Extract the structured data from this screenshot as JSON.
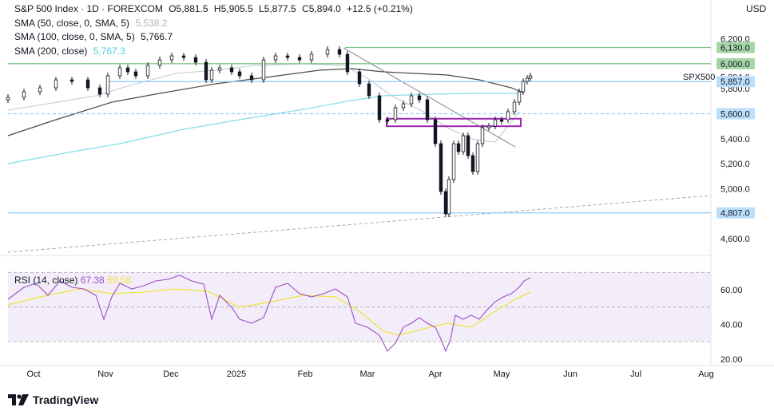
{
  "header": {
    "instrument": "S&P 500 Index · 1D · FOREXCOM",
    "open_label": "O",
    "open": "5,881.5",
    "high_label": "H",
    "high": "5,905.5",
    "low_label": "L",
    "low": "5,877.5",
    "close_label": "C",
    "close": "5,894.0",
    "change": "+12.5 (+0.21%)",
    "currency": "USD"
  },
  "indicators": [
    {
      "label": "SMA (50, close, 0, SMA, 5)",
      "value": "5,538.2",
      "color": "#c6c9d0"
    },
    {
      "label": "SMA (100, close, 0, SMA, 5)",
      "value": "5,766.7",
      "color": "#4a4a4a"
    },
    {
      "label": "SMA (200, close)",
      "value": "5,767.3",
      "color": "#80deea"
    }
  ],
  "rsi_panel": {
    "label": "RSI (14, close)",
    "value": "67.38",
    "ma_value": "59.58",
    "rsi_color": "#9c4fc7",
    "ma_color": "#f0e442"
  },
  "brand": "TradingView",
  "chart_data": {
    "type": "candlestick",
    "price_axis": {
      "min": 4400,
      "max": 6300,
      "ticks": [
        "6,200.0",
        "5,800.0",
        "5,400.0",
        "5,200.0",
        "5,000.0",
        "4,600.0"
      ]
    },
    "x_axis": {
      "labels": [
        "Oct",
        "Nov",
        "Dec",
        "2025",
        "Feb",
        "Mar",
        "Apr",
        "May",
        "Jun",
        "Jul",
        "Aug"
      ]
    },
    "price_labels": [
      {
        "text": "6,130.0",
        "value": 6130,
        "bg": "#a5d6a7"
      },
      {
        "text": "6,000.0",
        "value": 6000,
        "bg": "#a5d6a7"
      },
      {
        "text": "5,894.0",
        "value": 5894,
        "bg": "none"
      },
      {
        "text": "07:50:10",
        "value": 5870,
        "bg": "none"
      },
      {
        "text": "5,857.0",
        "value": 5857,
        "bg": "#bbdefb"
      },
      {
        "text": "5,600.0",
        "value": 5600,
        "bg": "#bbdefb"
      },
      {
        "text": "4,807.0",
        "value": 4807,
        "bg": "#bbdefb"
      }
    ],
    "horizontal_lines": [
      {
        "value": 6130,
        "color": "#81c784",
        "style": "solid"
      },
      {
        "value": 6000,
        "color": "#81c784",
        "style": "solid"
      },
      {
        "value": 5857,
        "color": "#90caf9",
        "style": "solid"
      },
      {
        "value": 5600,
        "color": "#90caf9",
        "style": "dashed"
      },
      {
        "value": 4807,
        "color": "#90caf9",
        "style": "solid"
      }
    ],
    "symbol_label": "SPX500",
    "rsi_axis": {
      "min": 20,
      "max": 80,
      "ticks": [
        "60.00",
        "40.00",
        "20.00"
      ],
      "bands": [
        70,
        50,
        30
      ]
    },
    "support_box": {
      "low": 5500,
      "high": 5560,
      "color": "#9c27b0"
    }
  }
}
